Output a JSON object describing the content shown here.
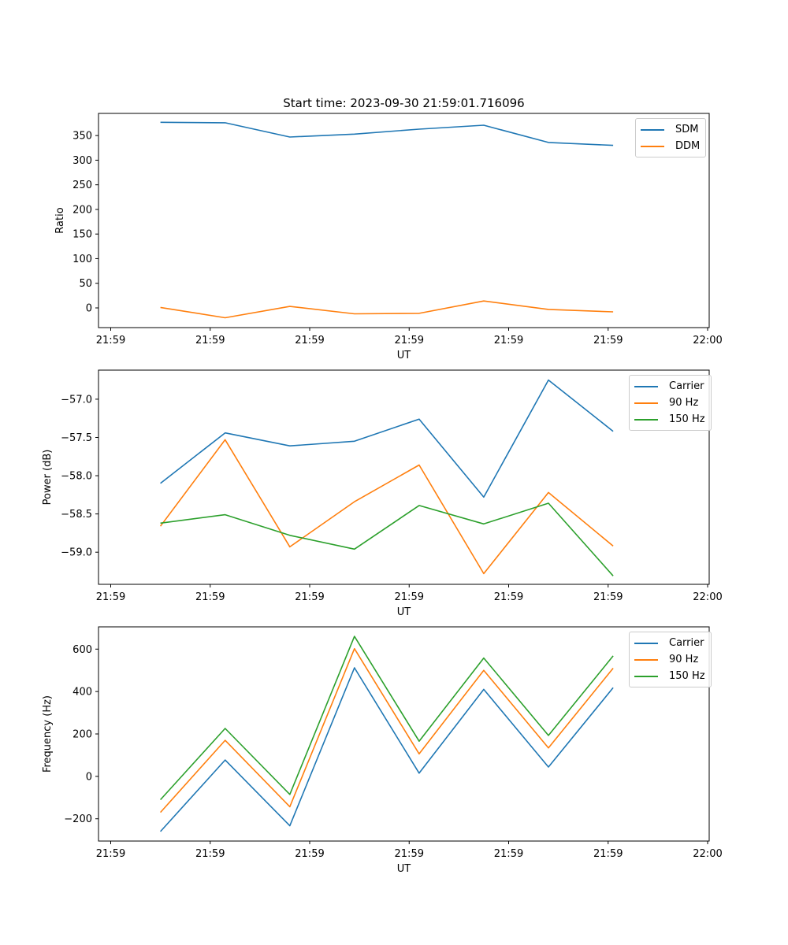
{
  "figure_title": "Start time: 2023-09-30 21:59:01.716096",
  "colors": {
    "blue": "#1f77b4",
    "orange": "#ff7f0e",
    "green": "#2ca02c"
  },
  "chart_data": [
    {
      "type": "line",
      "title": "Start time: 2023-09-30 21:59:01.716096",
      "xlabel": "UT",
      "ylabel": "Ratio",
      "x": [
        0.5,
        1.15,
        1.8,
        2.45,
        3.1,
        3.75,
        4.4,
        5.05
      ],
      "xlim": [
        0,
        6
      ],
      "xticks": [
        0,
        1,
        2,
        3,
        4,
        5,
        6
      ],
      "xtick_labels": [
        "21:59",
        "21:59",
        "21:59",
        "21:59",
        "21:59",
        "21:59",
        "22:00"
      ],
      "ylim": [
        -40,
        395
      ],
      "yticks": [
        0,
        50,
        100,
        150,
        200,
        250,
        300,
        350
      ],
      "ytick_labels": [
        "0",
        "50",
        "100",
        "150",
        "200",
        "250",
        "300",
        "350"
      ],
      "legend_position": "top-right",
      "series": [
        {
          "name": "SDM",
          "color": "#1f77b4",
          "values": [
            377,
            376,
            347,
            353,
            363,
            371,
            336,
            330
          ]
        },
        {
          "name": "DDM",
          "color": "#ff7f0e",
          "values": [
            1,
            -20,
            3,
            -12,
            -11,
            14,
            -3,
            -8
          ]
        }
      ]
    },
    {
      "type": "line",
      "title": "",
      "xlabel": "UT",
      "ylabel": "Power (dB)",
      "x": [
        0.5,
        1.15,
        1.8,
        2.45,
        3.1,
        3.75,
        4.4,
        5.05
      ],
      "xlim": [
        0,
        6
      ],
      "xticks": [
        0,
        1,
        2,
        3,
        4,
        5,
        6
      ],
      "xtick_labels": [
        "21:59",
        "21:59",
        "21:59",
        "21:59",
        "21:59",
        "21:59",
        "22:00"
      ],
      "ylim": [
        -59.42,
        -56.62
      ],
      "yticks": [
        -59.0,
        -58.5,
        -58.0,
        -57.5,
        -57.0
      ],
      "ytick_labels": [
        "−59.0",
        "−58.5",
        "−58.0",
        "−57.5",
        "−57.0"
      ],
      "legend_position": "top-right",
      "series": [
        {
          "name": "Carrier",
          "color": "#1f77b4",
          "values": [
            -58.1,
            -57.44,
            -57.61,
            -57.55,
            -57.26,
            -58.28,
            -56.75,
            -57.42
          ]
        },
        {
          "name": "90 Hz",
          "color": "#ff7f0e",
          "values": [
            -58.66,
            -57.53,
            -58.93,
            -58.34,
            -57.86,
            -59.28,
            -58.22,
            -58.92
          ]
        },
        {
          "name": "150 Hz",
          "color": "#2ca02c",
          "values": [
            -58.62,
            -58.51,
            -58.78,
            -58.96,
            -58.39,
            -58.63,
            -58.36,
            -59.31
          ]
        }
      ]
    },
    {
      "type": "line",
      "title": "",
      "xlabel": "UT",
      "ylabel": "Frequency (Hz)",
      "x": [
        0.5,
        1.15,
        1.8,
        2.45,
        3.1,
        3.75,
        4.4,
        5.05
      ],
      "xlim": [
        0,
        6
      ],
      "xticks": [
        0,
        1,
        2,
        3,
        4,
        5,
        6
      ],
      "xtick_labels": [
        "21:59",
        "21:59",
        "21:59",
        "21:59",
        "21:59",
        "21:59",
        "22:00"
      ],
      "ylim": [
        -305,
        705
      ],
      "yticks": [
        -200,
        0,
        200,
        400,
        600
      ],
      "ytick_labels": [
        "−200",
        "0",
        "200",
        "400",
        "600"
      ],
      "legend_position": "top-right",
      "series": [
        {
          "name": "Carrier",
          "color": "#1f77b4",
          "values": [
            -260,
            77,
            -233,
            512,
            15,
            410,
            44,
            418
          ]
        },
        {
          "name": "90 Hz",
          "color": "#ff7f0e",
          "values": [
            -170,
            170,
            -143,
            602,
            106,
            500,
            134,
            510
          ]
        },
        {
          "name": "150 Hz",
          "color": "#2ca02c",
          "values": [
            -110,
            226,
            -85,
            660,
            166,
            558,
            193,
            568
          ]
        }
      ]
    }
  ]
}
